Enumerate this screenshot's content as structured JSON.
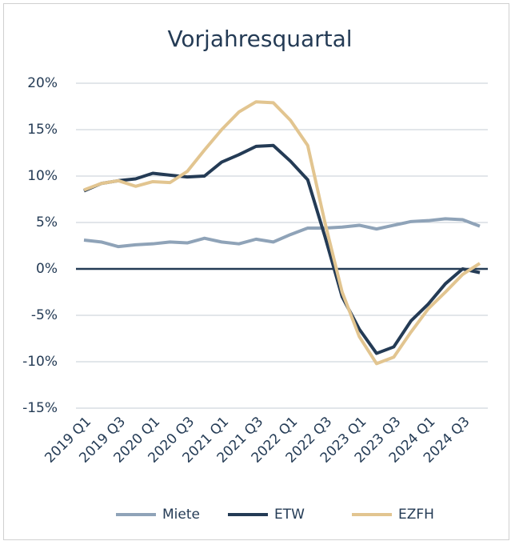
{
  "chart_data": {
    "type": "line",
    "title": "Vorjahresquartal",
    "categories": [
      "2019 Q1",
      null,
      "2019 Q3",
      null,
      "2020 Q1",
      null,
      "2020 Q3",
      null,
      "2021 Q1",
      null,
      "2021 Q3",
      null,
      "2022 Q1",
      null,
      "2022 Q3",
      null,
      "2023 Q1",
      null,
      "2023 Q3",
      null,
      "2024 Q1",
      null,
      "2024 Q3",
      null
    ],
    "series": [
      {
        "name": "Miete",
        "color": "#8fa3b8",
        "values": [
          3.1,
          2.9,
          2.4,
          2.6,
          2.7,
          2.9,
          2.8,
          3.3,
          2.9,
          2.7,
          3.2,
          2.9,
          3.7,
          4.4,
          4.4,
          4.5,
          4.7,
          4.3,
          4.7,
          5.1,
          5.2,
          5.4,
          5.3,
          4.6
        ]
      },
      {
        "name": "ETW",
        "color": "#243b55",
        "values": [
          8.4,
          9.2,
          9.5,
          9.7,
          10.3,
          10.1,
          9.9,
          10.0,
          11.5,
          12.3,
          13.2,
          13.3,
          11.6,
          9.6,
          3.5,
          -3.0,
          -6.5,
          -9.1,
          -8.4,
          -5.6,
          -3.8,
          -1.6,
          0.0,
          -0.4
        ]
      },
      {
        "name": "EZFH",
        "color": "#e2c590",
        "values": [
          8.5,
          9.2,
          9.5,
          8.9,
          9.4,
          9.3,
          10.5,
          12.8,
          15.0,
          16.9,
          18.0,
          17.9,
          16.0,
          13.3,
          5.0,
          -2.5,
          -7.3,
          -10.2,
          -9.5,
          -6.8,
          -4.3,
          -2.5,
          -0.6,
          0.6
        ]
      }
    ],
    "ylim": [
      -15,
      20
    ],
    "yticks": [
      {
        "value": -15,
        "label": "-15%"
      },
      {
        "value": -10,
        "label": "-10%"
      },
      {
        "value": -5,
        "label": "-5%"
      },
      {
        "value": 0,
        "label": "0%"
      },
      {
        "value": 5,
        "label": "5%"
      },
      {
        "value": 10,
        "label": "10%"
      },
      {
        "value": 15,
        "label": "15%"
      },
      {
        "value": 20,
        "label": "20%"
      }
    ],
    "grid": true,
    "legend": "bottom"
  }
}
